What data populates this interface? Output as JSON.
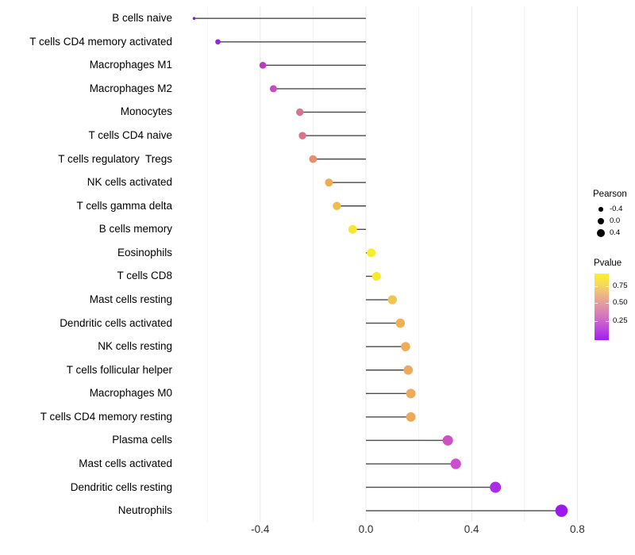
{
  "chart_data": {
    "type": "lollipop",
    "title": "",
    "xlabel": "",
    "ylabel": "",
    "x_tick_labels": [
      "-0.4",
      "0.0",
      "0.4",
      "0.8"
    ],
    "x_ticks": [
      -0.4,
      0.0,
      0.4,
      0.8
    ],
    "x_minor_grid": [
      -0.6,
      -0.2,
      0.2,
      0.6
    ],
    "xlim": [
      -0.72,
      1.02
    ],
    "grid": "vertical-only",
    "legend_position": "right",
    "points": [
      {
        "label": "B cells naive",
        "pearson": -0.65,
        "color": "#8E1BDC",
        "r": 1.8
      },
      {
        "label": "T cells CD4 memory activated",
        "pearson": -0.56,
        "color": "#9726D4",
        "r": 3.3
      },
      {
        "label": "Macrophages M1",
        "pearson": -0.39,
        "color": "#BB3DBE",
        "r": 4.3
      },
      {
        "label": "Macrophages M2",
        "pearson": -0.35,
        "color": "#C44CC0",
        "r": 4.5
      },
      {
        "label": "Monocytes",
        "pearson": -0.25,
        "color": "#D8748B",
        "r": 4.7
      },
      {
        "label": "T cells CD4 naive",
        "pearson": -0.24,
        "color": "#D97487",
        "r": 4.7
      },
      {
        "label": "T cells regulatory  Tregs",
        "pearson": -0.2,
        "color": "#E2906E",
        "r": 4.9
      },
      {
        "label": "NK cells activated",
        "pearson": -0.14,
        "color": "#ECAB57",
        "r": 5.0
      },
      {
        "label": "T cells gamma delta",
        "pearson": -0.11,
        "color": "#F0BC4B",
        "r": 5.2
      },
      {
        "label": "B cells memory",
        "pearson": -0.05,
        "color": "#F7E52F",
        "r": 5.4
      },
      {
        "label": "Eosinophils",
        "pearson": 0.02,
        "color": "#F9EC29",
        "r": 5.5
      },
      {
        "label": "T cells CD8",
        "pearson": 0.04,
        "color": "#F8E92C",
        "r": 5.5
      },
      {
        "label": "Mast cells resting",
        "pearson": 0.1,
        "color": "#F2C64E",
        "r": 5.7
      },
      {
        "label": "Dendritic cells activated",
        "pearson": 0.13,
        "color": "#EFB156",
        "r": 5.8
      },
      {
        "label": "NK cells resting",
        "pearson": 0.15,
        "color": "#EEAC59",
        "r": 5.8
      },
      {
        "label": "T cells follicular helper",
        "pearson": 0.16,
        "color": "#EDAA5B",
        "r": 5.9
      },
      {
        "label": "Macrophages M0",
        "pearson": 0.17,
        "color": "#EEAB5A",
        "r": 6.0
      },
      {
        "label": "T cells CD4 memory resting",
        "pearson": 0.17,
        "color": "#EEAA5B",
        "r": 6.0
      },
      {
        "label": "Plasma cells",
        "pearson": 0.31,
        "color": "#CC51C6",
        "r": 6.5
      },
      {
        "label": "Mast cells activated",
        "pearson": 0.34,
        "color": "#CD4FCB",
        "r": 6.6
      },
      {
        "label": "Dendritic cells resting",
        "pearson": 0.49,
        "color": "#AA2EE4",
        "r": 7.0
      },
      {
        "label": "Neutrophils",
        "pearson": 0.74,
        "color": "#9C19EE",
        "r": 7.8
      }
    ],
    "legend_size": {
      "title": "Pearson",
      "dot_color": "#000000",
      "entries": [
        {
          "label": "-0.4",
          "r": 2.8
        },
        {
          "label": "0.0",
          "r": 4.0
        },
        {
          "label": "0.4",
          "r": 5.0
        }
      ]
    },
    "legend_color": {
      "title": "Pvalue",
      "tick_labels": [
        "0.75",
        "0.50",
        "0.25"
      ],
      "gradient_top_to_bottom": [
        "#FBF127",
        "#F4DA5E",
        "#ECB285",
        "#E092A6",
        "#D26FC4",
        "#BC47DF",
        "#A21EF0"
      ]
    },
    "style": {
      "stem_color": "#4a4a4a",
      "major_grid_color": "#e8e8e8",
      "minor_grid_color": "#f3f3f3",
      "background": "#ffffff"
    }
  }
}
